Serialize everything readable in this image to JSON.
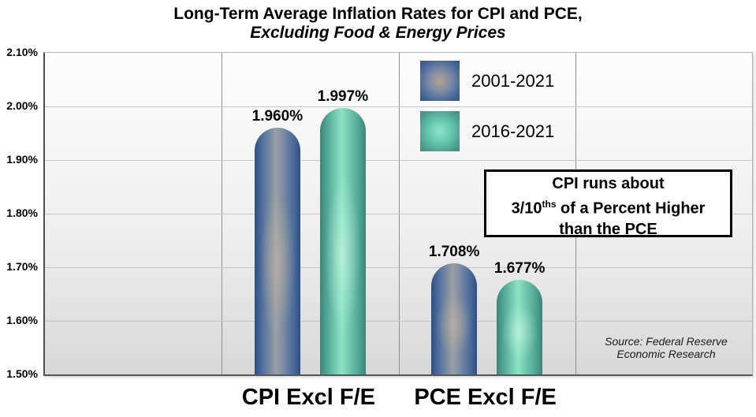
{
  "title": {
    "line1": "Long-Term Average Inflation Rates for CPI and PCE,",
    "line2": "Excluding Food & Energy Prices"
  },
  "chart_data": {
    "type": "bar",
    "title": "Long-Term Average Inflation Rates for CPI and PCE,",
    "subtitle": "Excluding Food & Energy Prices",
    "categories": [
      "CPI Excl F/E",
      "PCE Excl F/E"
    ],
    "series": [
      {
        "name": "2001-2021",
        "values": [
          1.96,
          1.708
        ],
        "value_labels": [
          "1.960%",
          "1.708%"
        ]
      },
      {
        "name": "2016-2021",
        "values": [
          1.997,
          1.677
        ],
        "value_labels": [
          "1.997%",
          "1.677%"
        ]
      }
    ],
    "ylim": [
      1.5,
      2.1
    ],
    "ytick_step": 0.1,
    "yticks": [
      {
        "value": 2.1,
        "label": "2.10%"
      },
      {
        "value": 2.0,
        "label": "2.00%"
      },
      {
        "value": 1.9,
        "label": "1.90%"
      },
      {
        "value": 1.8,
        "label": "1.80%"
      },
      {
        "value": 1.7,
        "label": "1.70%"
      },
      {
        "value": 1.6,
        "label": "1.60%"
      },
      {
        "value": 1.5,
        "label": "1.50%"
      }
    ],
    "grid": true,
    "legend_position": "inside-top-right",
    "annotation": {
      "line1": "CPI runs about",
      "line2_prefix": "3/10",
      "line2_sup": "ths",
      "line2_suffix": " of a Percent Higher",
      "line3": "than the PCE"
    },
    "source": {
      "line1": "Source: Federal Reserve",
      "line2": "Economic Research"
    }
  },
  "colors": {
    "bar_2001_edge": "#2f4e7c",
    "bar_2001_center": "#9aa0a5",
    "bar_2016_edge": "#3a8478",
    "bar_2016_center": "#8be4c6",
    "plot_bg_top": "#fdfdfd",
    "plot_bg_bottom": "#d8d8d8",
    "gridline_horizontal": "#c6c6c6",
    "gridline_vertical": "#8f8f8f",
    "annotation_border": "#000000",
    "text": "#000000"
  }
}
